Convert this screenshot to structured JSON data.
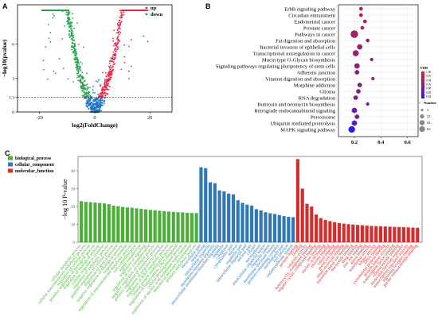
{
  "panels": {
    "a": {
      "label": "A"
    },
    "b": {
      "label": "B"
    },
    "c": {
      "label": "C"
    }
  },
  "chart_data": [
    {
      "id": "volcano",
      "type": "scatter",
      "xlabel": "log2(FoldChange)",
      "ylabel": "−log10(pvalue)",
      "xlim": [
        -28,
        28
      ],
      "ylim": [
        0,
        9.5
      ],
      "xticks": [
        -20,
        0,
        20
      ],
      "yticks": [
        0,
        1.3,
        3,
        6
      ],
      "threshold_line": 1.3,
      "grid": false,
      "legend_position": "top-right",
      "legend": [
        {
          "name": "up",
          "color": "#e8264b"
        },
        {
          "name": "down",
          "color": "#22a14a"
        }
      ],
      "colors": {
        "up": "#e8264b",
        "down": "#22a14a",
        "not_significant": "#1f73c6"
      }
    },
    {
      "id": "kegg",
      "type": "scatter",
      "xlim": [
        0.08,
        0.68
      ],
      "xticks": [
        0.2,
        0.4,
        0.6
      ],
      "legend_position": "right",
      "categories": [
        "ErbB signaling pathway",
        "Circadian entrainment",
        "Endometrial cancer",
        "Prostate cancer",
        "Pathways in cancer",
        "Fat digestion and absorption",
        "Bacterial invasion of epithelial cells",
        "Transcriptional misregulation in cancer",
        "Mucin type O-Glycan biosynthesis",
        "Signaling pathways regulating pluripotency of stem cells",
        "Adherens junction",
        "Vitamin digestion and absorption",
        "Morphine addiction",
        "Glioma",
        "RNA degradation",
        "Butirosin and neomycin biosynthesis",
        "Retrograde endocannabinoid signaling",
        "Peroxisome",
        "Ubiquitin mediated proteolysis",
        "MAPK signaling pathway"
      ],
      "x": [
        0.25,
        0.25,
        0.28,
        0.26,
        0.2,
        0.3,
        0.24,
        0.21,
        0.33,
        0.22,
        0.22,
        0.34,
        0.24,
        0.23,
        0.21,
        0.3,
        0.2,
        0.22,
        0.2,
        0.18
      ],
      "fdr": [
        0.97,
        0.96,
        0.95,
        0.95,
        0.94,
        0.94,
        0.93,
        0.93,
        0.92,
        0.92,
        0.91,
        0.91,
        0.9,
        0.9,
        0.89,
        0.89,
        0.88,
        0.87,
        0.85,
        0.8
      ],
      "number": [
        5,
        5,
        5,
        5,
        63,
        5,
        23,
        33,
        3,
        23,
        13,
        3,
        13,
        13,
        13,
        3,
        23,
        13,
        23,
        43
      ],
      "color_legend": {
        "title": "FDR",
        "ticks": [
          "1.00",
          "0.97",
          "0.94",
          "0.91",
          "0.88",
          "0.85",
          "0.82"
        ],
        "high_color": "#dc1f2e",
        "low_color": "#2b1fe6"
      },
      "size_legend": {
        "title": "Number",
        "values": [
          "3",
          "23",
          "43",
          "63"
        ]
      }
    },
    {
      "id": "go",
      "type": "bar",
      "ylabel": "−log 10 P-value",
      "ylim": [
        0,
        48
      ],
      "yticks": [
        0,
        10,
        20,
        30,
        40
      ],
      "legend_position": "top-left",
      "legend": [
        {
          "name": "biological_process",
          "color": "#4caf3a"
        },
        {
          "name": "cellular_component",
          "color": "#2f78b4"
        },
        {
          "name": "molecular_function",
          "color": "#d62c2c"
        }
      ],
      "series": [
        {
          "name": "biological_process",
          "categories": [
            "cellular metabolic process",
            "cellular macromolecule metabolic process",
            "regulation of cellular process",
            "positive regulation of biological process",
            "regulation of biological process",
            "cellular response to stimulus",
            "regulation of metabolic process",
            "positive regulation of cellular process",
            "regulation of gene expression",
            "negative regulation of biological process",
            "response to stimulus",
            "regulation of macromolecule metabolic process",
            "cell communication",
            "signal transduction",
            "regulation of signaling",
            "regulation of cell communication",
            "negative regulation of cellular process",
            "positive regulation of metabolic process",
            "regulation of response to stimulus",
            "regulation of RNA metabolic process",
            "cellular protein modification process",
            "regulation of transcription, DNA-templated",
            "cellular developmental process",
            "regulation of nucleic acid-templated transcription",
            "anatomical structure development",
            "primary metabolic process"
          ],
          "values": [
            23,
            22.6,
            22.4,
            22.2,
            22,
            21.7,
            21.3,
            20.5,
            20.2,
            19.8,
            19.5,
            19.3,
            19,
            18.7,
            18.4,
            18.1,
            17.9,
            17.6,
            17.4,
            17.2,
            17,
            16.8,
            16.7,
            16.5,
            16.4,
            16.3
          ]
        },
        {
          "name": "cellular_component",
          "categories": [
            "intracellular part",
            "intracellular",
            "intracellular organelle",
            "membrane-bounded organelle",
            "intracellular membrane-bounded organelle",
            "organelle",
            "cytoplasm",
            "cytoplasmic part",
            "nucleus",
            "organelle part",
            "intracellular organelle part",
            "nuclear part",
            "cytosol",
            "nucleoplasm",
            "intracellular organelle lumen",
            "organelle lumen",
            "membrane-enclosed lumen",
            "protein-containing complex",
            "nucleoplasm part",
            "cell junction",
            "endomembrane system"
          ],
          "values": [
            42,
            41.5,
            33.5,
            33,
            29,
            28.5,
            27.2,
            26.8,
            23.5,
            22,
            21,
            20.5,
            18.5,
            17.8,
            16.8,
            16.2,
            15.8,
            15.2,
            14.6,
            14.2,
            14
          ]
        },
        {
          "name": "molecular_function",
          "categories": [
            "protein binding",
            "binding",
            "catalytic activity",
            "heterocyclic compound binding",
            "organic cyclic compound binding",
            "ion binding",
            "nucleic acid binding",
            "enzyme binding",
            "cation binding",
            "metal ion binding",
            "small molecule binding",
            "transition metal ion binding",
            "nucleotide binding",
            "drug binding",
            "zinc ion binding",
            "anion binding",
            "transferase activity",
            "kinase activity",
            "DNA binding",
            "cytoskeletal protein binding",
            "protein kinase activity",
            "transcription factor binding",
            "ribonucleotide binding",
            "molecular function regulator",
            "transcription regulator activity",
            "signaling receptor binding",
            "purine ribonucleotide binding"
          ],
          "values": [
            46.5,
            30,
            21.5,
            20,
            15.5,
            13.5,
            12.5,
            11.8,
            11.2,
            10.7,
            10.4,
            10.1,
            9.9,
            9.7,
            9.5,
            9.3,
            9.1,
            9,
            8.9,
            8.8,
            8.7,
            8.6,
            8.5,
            8.4,
            8.3,
            8.2,
            8.1
          ]
        }
      ]
    }
  ]
}
